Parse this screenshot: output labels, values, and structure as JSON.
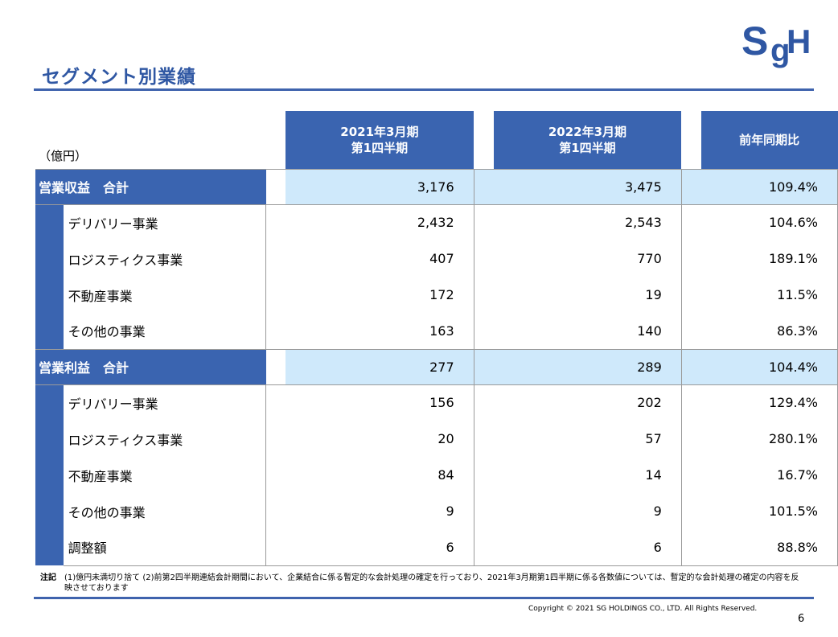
{
  "header": {
    "title": "セグメント別業績",
    "logo_text": "SgH",
    "unit": "（億円）"
  },
  "table": {
    "columns": [
      "2021年3月期\n第1四半期",
      "2022年3月期\n第1四半期",
      "前年同期比"
    ],
    "groups": [
      {
        "label": "営業収益　合計",
        "values": [
          "3,176",
          "3,475",
          "109.4%"
        ],
        "rows": [
          {
            "label": "デリバリー事業",
            "values": [
              "2,432",
              "2,543",
              "104.6%"
            ]
          },
          {
            "label": "ロジスティクス事業",
            "values": [
              "407",
              "770",
              "189.1%"
            ]
          },
          {
            "label": "不動産事業",
            "values": [
              "172",
              "19",
              "11.5%"
            ]
          },
          {
            "label": "その他の事業",
            "values": [
              "163",
              "140",
              "86.3%"
            ]
          }
        ]
      },
      {
        "label": "営業利益　合計",
        "values": [
          "277",
          "289",
          "104.4%"
        ],
        "rows": [
          {
            "label": "デリバリー事業",
            "values": [
              "156",
              "202",
              "129.4%"
            ]
          },
          {
            "label": "ロジスティクス事業",
            "values": [
              "20",
              "57",
              "280.1%"
            ]
          },
          {
            "label": "不動産事業",
            "values": [
              "84",
              "14",
              "16.7%"
            ]
          },
          {
            "label": "その他の事業",
            "values": [
              "9",
              "9",
              "101.5%"
            ]
          },
          {
            "label": "調整額",
            "values": [
              "6",
              "6",
              "88.8%"
            ]
          }
        ]
      }
    ]
  },
  "notes": {
    "label": "注記",
    "text": "(1)億円未満切り捨て (2)前第2四半期連結会計期間において、企業結合に係る暫定的な会計処理の確定を行っており、2021年3月期第1四半期に係る各数値については、暫定的な会計処理の確定の内容を反映させております"
  },
  "footer": {
    "copyright": "Copyright © 2021 SG HOLDINGS CO., LTD.  All Rights Reserved.",
    "page_number": "6"
  },
  "colors": {
    "accent_blue": "#3a64b0",
    "light_blue": "#cfe9fb",
    "logo_blue": "#2f57a3"
  }
}
